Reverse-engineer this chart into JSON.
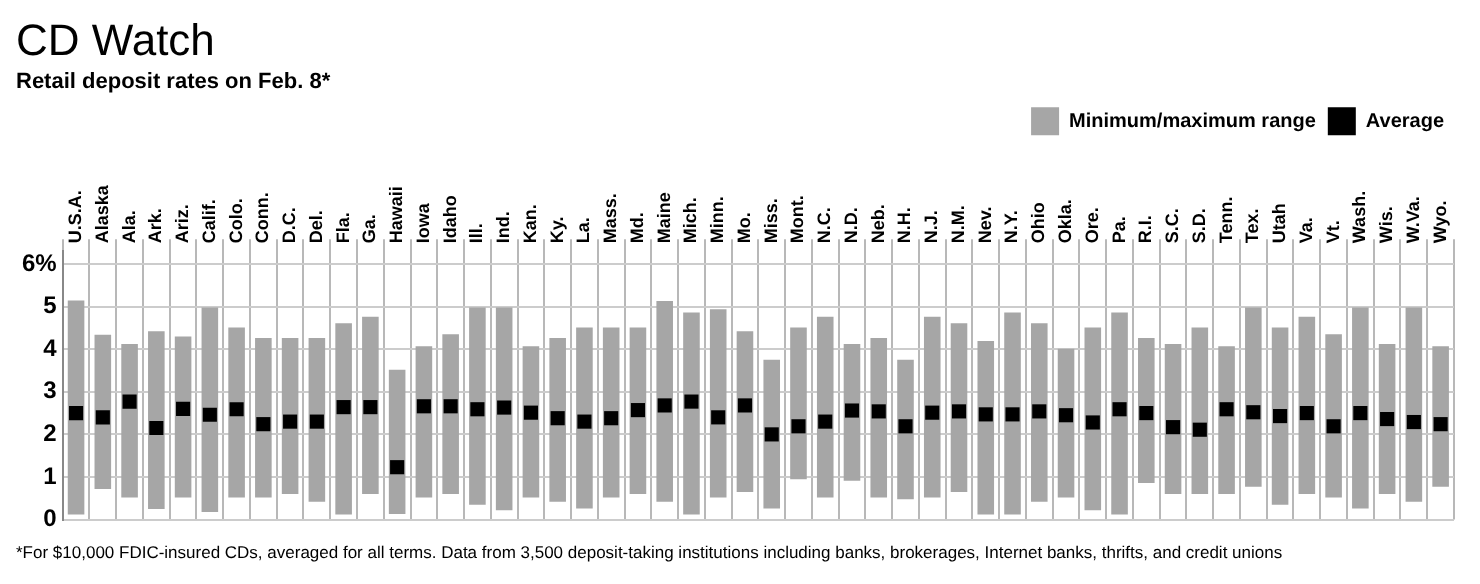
{
  "chart_data": {
    "type": "bar",
    "title": "CD Watch",
    "subtitle": "Retail deposit rates on Feb. 8*",
    "categories": [
      "U.S.A.",
      "Alaska",
      "Ala.",
      "Ark.",
      "Ariz.",
      "Calif.",
      "Colo.",
      "Conn.",
      "D.C.",
      "Del.",
      "Fla.",
      "Ga.",
      "Hawaii",
      "Iowa",
      "Idaho",
      "Ill.",
      "Ind.",
      "Kan.",
      "Ky.",
      "La.",
      "Mass.",
      "Md.",
      "Maine",
      "Mich.",
      "Minn.",
      "Mo.",
      "Miss.",
      "Mont.",
      "N.C.",
      "N.D.",
      "Neb.",
      "N.H.",
      "N.J.",
      "N.M.",
      "Nev.",
      "N.Y.",
      "Ohio",
      "Okla.",
      "Ore.",
      "Pa.",
      "R.I.",
      "S.C.",
      "S.D.",
      "Tenn.",
      "Tex.",
      "Utah",
      "Va.",
      "Vt.",
      "Wash.",
      "Wis.",
      "W.Va.",
      "Wyo."
    ],
    "series": [
      {
        "name": "Minimum/maximum range",
        "type": "bar",
        "color": "#a6a6a6",
        "base": [
          0.12,
          0.72,
          0.52,
          0.25,
          0.52,
          0.18,
          0.52,
          0.52,
          0.6,
          0.42,
          0.12,
          0.6,
          0.13,
          0.52,
          0.6,
          0.35,
          0.22,
          0.52,
          0.42,
          0.26,
          0.52,
          0.6,
          0.42,
          0.12,
          0.52,
          0.65,
          0.26,
          0.95,
          0.52,
          0.91,
          0.52,
          0.48,
          0.52,
          0.65,
          0.12,
          0.12,
          0.42,
          0.52,
          0.22,
          0.12,
          0.86,
          0.6,
          0.6,
          0.6,
          0.77,
          0.35,
          0.6,
          0.52,
          0.26,
          0.6,
          0.42,
          0.77
        ],
        "values": [
          5.02,
          3.62,
          3.6,
          4.17,
          3.78,
          4.8,
          3.99,
          3.74,
          3.66,
          3.84,
          4.49,
          4.16,
          3.39,
          3.55,
          3.75,
          4.63,
          4.76,
          3.55,
          3.84,
          4.25,
          3.99,
          3.91,
          4.71,
          4.74,
          4.42,
          3.77,
          3.49,
          3.56,
          4.24,
          3.21,
          3.74,
          3.27,
          4.24,
          3.96,
          4.07,
          4.74,
          4.19,
          3.49,
          4.29,
          4.74,
          3.4,
          3.52,
          3.91,
          3.47,
          4.21,
          4.16,
          4.16,
          3.83,
          4.72,
          3.52,
          4.56,
          3.3
        ]
      },
      {
        "name": "Average",
        "type": "scatter",
        "color": "#000000",
        "marker": "square",
        "values": [
          2.5,
          2.4,
          2.77,
          2.15,
          2.6,
          2.46,
          2.59,
          2.24,
          2.3,
          2.3,
          2.64,
          2.64,
          1.23,
          2.66,
          2.66,
          2.59,
          2.63,
          2.51,
          2.38,
          2.3,
          2.38,
          2.57,
          2.68,
          2.77,
          2.4,
          2.68,
          2.0,
          2.19,
          2.3,
          2.56,
          2.54,
          2.19,
          2.51,
          2.54,
          2.47,
          2.47,
          2.54,
          2.45,
          2.28,
          2.59,
          2.5,
          2.17,
          2.11,
          2.59,
          2.52,
          2.43,
          2.5,
          2.19,
          2.5,
          2.36,
          2.29,
          2.24
        ]
      }
    ],
    "ylim": [
      0,
      6.3
    ],
    "yticks": [
      0,
      1,
      2,
      3,
      4,
      5,
      {
        "value": 6,
        "label": "6%"
      }
    ],
    "grid": true,
    "legend": "top right",
    "annotations": [
      "*For $10,000 FDIC-insured CDs, averaged for all terms. Data from 3,500 deposit-taking institutions including banks, brokerages, Internet banks, thrifts, and credit unions"
    ]
  }
}
